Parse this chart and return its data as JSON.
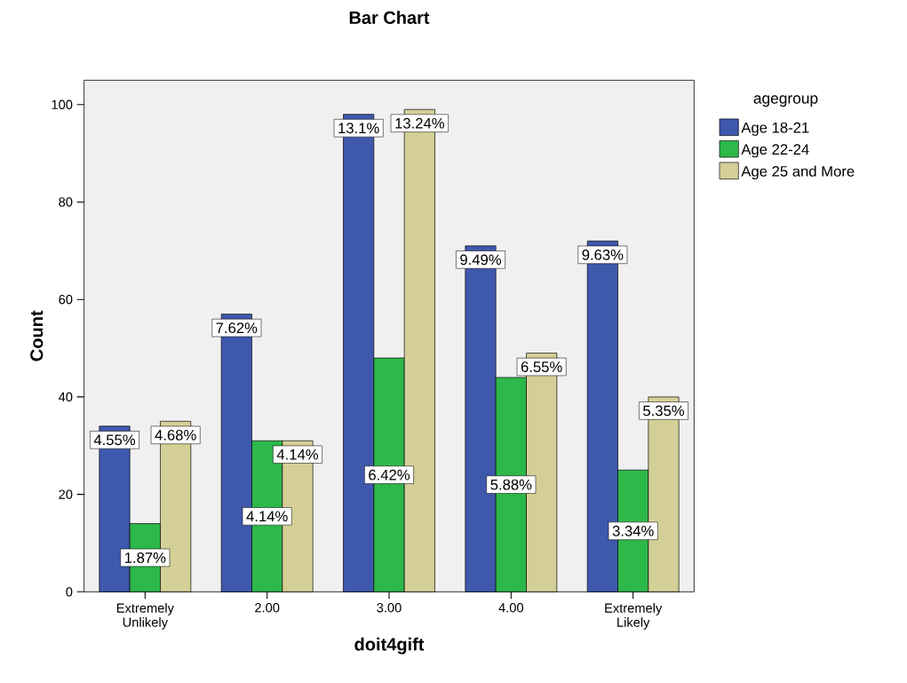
{
  "chart_data": {
    "type": "bar",
    "title": "Bar Chart",
    "xlabel": "doit4gift",
    "ylabel": "Count",
    "legend_title": "agegroup",
    "categories": [
      "Extremely Unlikely",
      "2.00",
      "3.00",
      "4.00",
      "Extremely Likely"
    ],
    "series": [
      {
        "name": "Age 18-21",
        "color": "#3e58ac",
        "values": [
          34,
          57,
          98,
          71,
          72
        ]
      },
      {
        "name": "Age 22-24",
        "color": "#2db84a",
        "values": [
          14,
          31,
          48,
          44,
          25
        ]
      },
      {
        "name": "Age 25 and More",
        "color": "#d4cf96",
        "values": [
          35,
          31,
          99,
          49,
          40
        ]
      }
    ],
    "annotations": [
      "4.55%",
      "1.87%",
      "4.68%",
      "7.62%",
      "4.14%",
      "4.14%",
      "13.1%",
      "6.42%",
      "13.24%",
      "9.49%",
      "5.88%",
      "6.55%",
      "9.63%",
      "3.34%",
      "5.35%"
    ],
    "ylim": [
      0,
      105
    ],
    "yticks": [
      0,
      20,
      40,
      60,
      80,
      100
    ],
    "legend": "right"
  }
}
